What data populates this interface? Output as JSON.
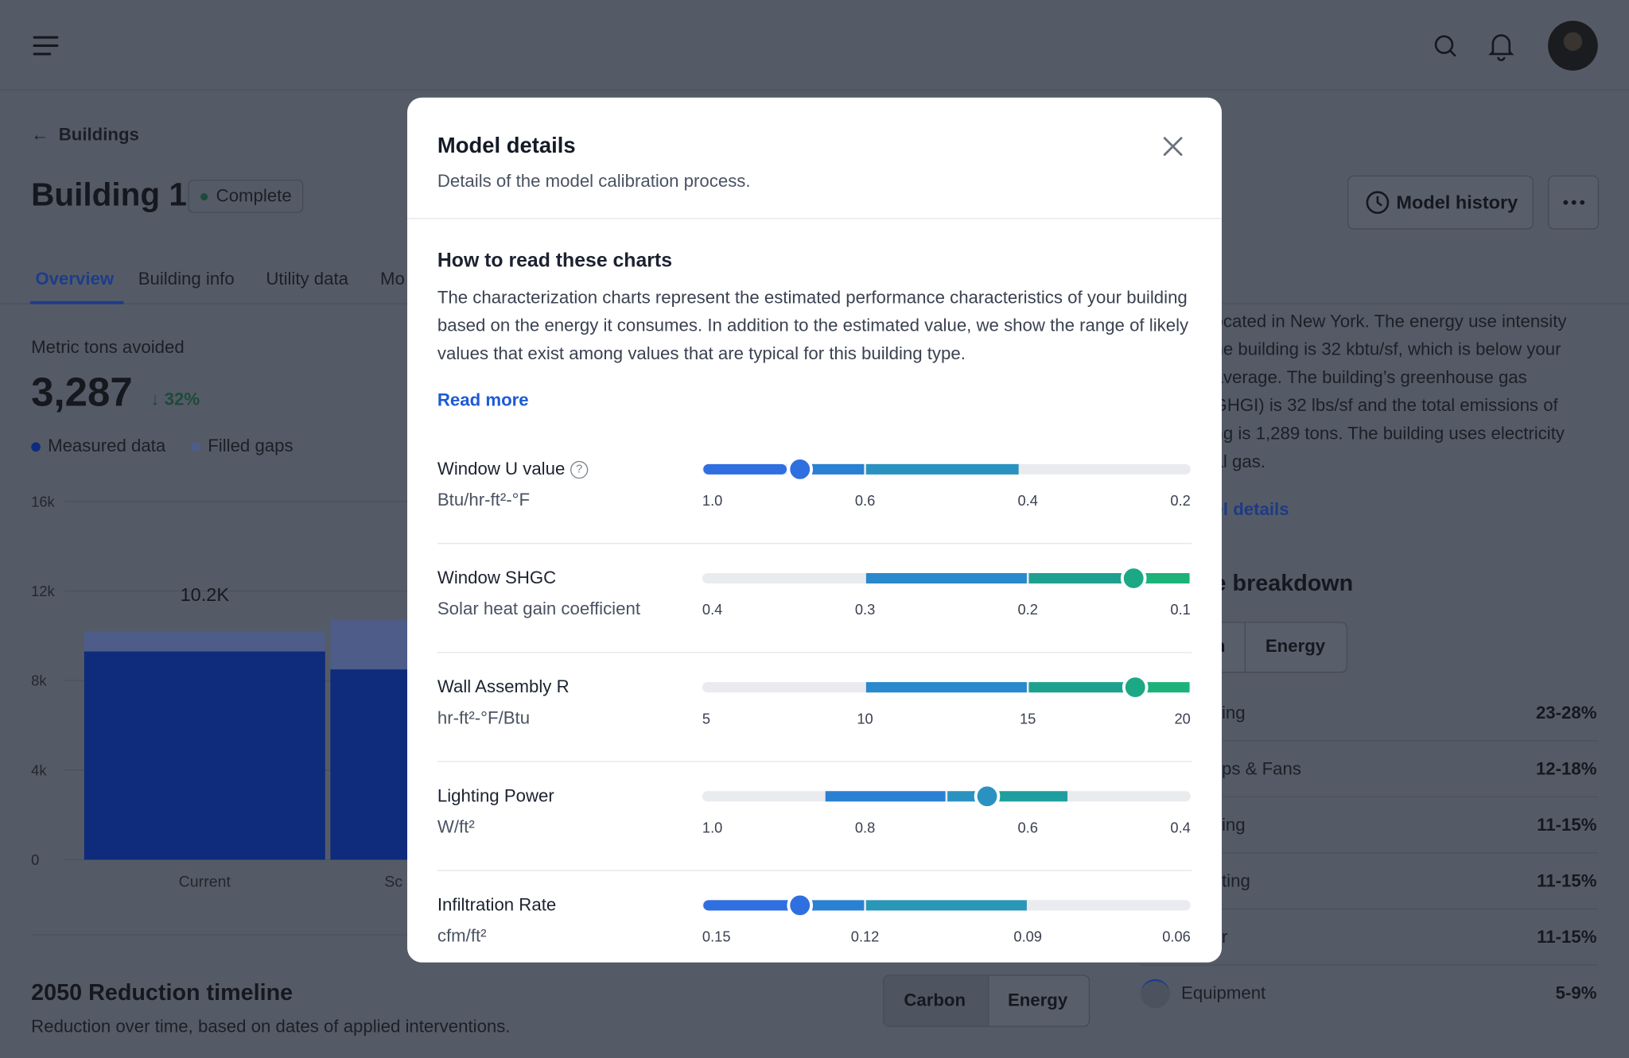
{
  "page": {
    "back": "Buildings",
    "title": "Building 1",
    "status": "Complete",
    "tabs": [
      "Overview",
      "Building info",
      "Utility data",
      "Mo"
    ],
    "history_button": "Model history",
    "metric_label": "Metric tons avoided",
    "metric_value": "3,287",
    "metric_change": "32%"
  },
  "chart_data": {
    "type": "bar",
    "stacked": true,
    "categories": [
      "Current",
      "Sc"
    ],
    "series": [
      {
        "name": "Measured data",
        "color": "#0f2b7c",
        "values": [
          9300,
          8500
        ]
      },
      {
        "name": "Filled gaps",
        "color": "#4d5c89",
        "values": [
          900,
          2200
        ]
      }
    ],
    "annotations": [
      "10.2K"
    ],
    "ylim": [
      0,
      16000
    ],
    "yticks": [
      0,
      {
        "value": 4000,
        "label": "4k"
      },
      {
        "value": 8000,
        "label": "8k"
      },
      {
        "value": 12000,
        "label": "12k"
      },
      {
        "value": 16000,
        "label": "16k"
      }
    ],
    "grid": true
  },
  "summary": {
    "lines": [
      "ocated in New York. The energy use intensity",
      "he building is 32 kbtu/sf, which is below your",
      "average. The building’s greenhouse gas",
      "GHGI) is 32 lbs/sf and the total emissions of",
      "ng is 1,289 tons. The building uses electricity",
      "al gas."
    ],
    "link": "el details"
  },
  "breakdown": {
    "title": "e breakdown",
    "tabs": [
      "n",
      "Energy"
    ],
    "rows": [
      {
        "label": "ing",
        "value": "23-28%"
      },
      {
        "label": "ps & Fans",
        "value": "12-18%"
      },
      {
        "label": "ing",
        "value": "11-15%"
      },
      {
        "label": "ting",
        "value": "11-15%"
      },
      {
        "label": "r",
        "value": "11-15%"
      },
      {
        "label": "Equipment",
        "value": "5-9%"
      }
    ]
  },
  "timeline": {
    "title": "2050 Reduction timeline",
    "subtitle": "Reduction over time, based on dates of applied interventions.",
    "tabs": [
      "Carbon",
      "Energy"
    ]
  },
  "modal": {
    "title": "Model details",
    "subtitle": "Details of the model calibration process.",
    "section_title": "How to read these charts",
    "body": "The characterization charts represent the estimated performance characteristics of your building based on the energy it consumes. In addition to the estimated value, we show the range of likely values that exist among values that are typical for this building type.",
    "link": "Read more",
    "sliders": [
      {
        "label": "Window U value",
        "unit": "Btu/hr-ft²-°F",
        "help": true,
        "lim": [
          1,
          0.2
        ],
        "ticks": [
          {
            "value": 1,
            "label": "1.0"
          },
          0.6,
          0.4,
          0.2
        ],
        "segments": [
          {
            "from": 1,
            "to": 0.79,
            "color": "#2f6fe0"
          },
          {
            "from": 0.79,
            "to": 0.6,
            "color": "#2a80d2"
          },
          {
            "from": 0.6,
            "to": 0.41,
            "color": "#2a92c0"
          }
        ],
        "estimate": 0.76,
        "estimate_color": "#2f6fe0"
      },
      {
        "label": "Window SHGC",
        "unit": "Solar heat gain coefficient",
        "help": false,
        "lim": [
          0.4,
          0.1
        ],
        "ticks": [
          0.4,
          0.3,
          0.2,
          0.1
        ],
        "segments": [
          {
            "from": 0.3,
            "to": 0.2,
            "color": "#2a88cc"
          },
          {
            "from": 0.2,
            "to": 0.13,
            "color": "#1ea08f"
          },
          {
            "from": 0.13,
            "to": 0.1,
            "color": "#1cb27a"
          }
        ],
        "estimate": 0.135,
        "estimate_color": "#1ca885"
      },
      {
        "label": "Wall Assembly R",
        "unit": "hr-ft²-°F/Btu",
        "help": false,
        "lim": [
          5,
          20
        ],
        "ticks": [
          5,
          10,
          15,
          20
        ],
        "segments": [
          {
            "from": 10,
            "to": 15,
            "color": "#2a88cc"
          },
          {
            "from": 15,
            "to": 18.3,
            "color": "#1ea08f"
          },
          {
            "from": 18.3,
            "to": 20,
            "color": "#1cb27a"
          }
        ],
        "estimate": 18.3,
        "estimate_color": "#1ca885"
      },
      {
        "label": "Lighting Power",
        "unit": "W/ft²",
        "help": false,
        "lim": [
          1,
          0.4
        ],
        "ticks": [
          {
            "value": 1,
            "label": "1.0"
          },
          0.8,
          0.6,
          0.4
        ],
        "segments": [
          {
            "from": 0.85,
            "to": 0.7,
            "color": "#2a80d2"
          },
          {
            "from": 0.7,
            "to": 0.65,
            "color": "#2a92c0"
          },
          {
            "from": 0.65,
            "to": 0.55,
            "color": "#1e9ea0"
          }
        ],
        "estimate": 0.65,
        "estimate_color": "#2a92c0"
      },
      {
        "label": "Infiltration Rate",
        "unit": "cfm/ft²",
        "help": false,
        "lim": [
          0.15,
          0.06
        ],
        "ticks": [
          0.15,
          0.12,
          0.09,
          0.06
        ],
        "segments": [
          {
            "from": 0.15,
            "to": 0.132,
            "color": "#2f6fe0"
          },
          {
            "from": 0.132,
            "to": 0.12,
            "color": "#2a80d2"
          },
          {
            "from": 0.12,
            "to": 0.09,
            "color": "#2a96b8"
          }
        ],
        "estimate": 0.132,
        "estimate_color": "#2f6fe0"
      }
    ]
  }
}
